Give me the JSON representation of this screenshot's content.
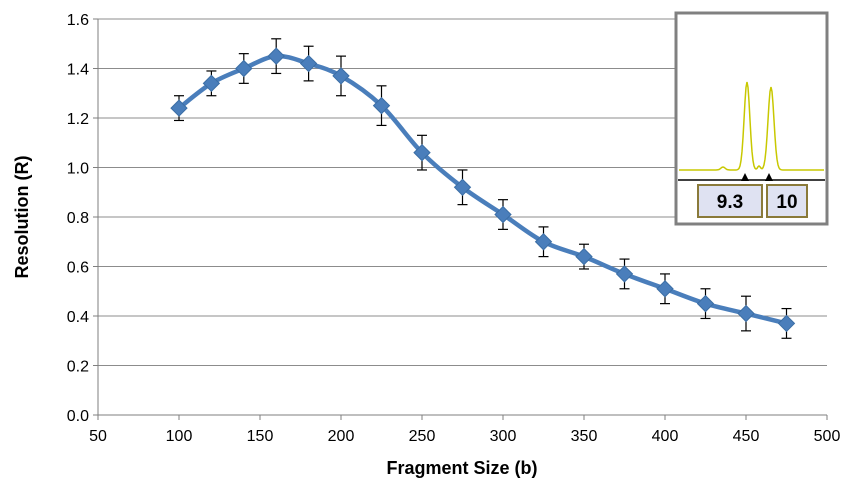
{
  "chart_data": {
    "type": "line",
    "title": "",
    "xlabel": "Fragment Size (b)",
    "ylabel": "Resolution  (R)",
    "xlim": [
      50,
      500
    ],
    "ylim": [
      0.0,
      1.6
    ],
    "x_ticks": [
      50,
      100,
      150,
      200,
      250,
      300,
      350,
      400,
      450,
      500
    ],
    "y_ticks": [
      "0.0",
      "0.2",
      "0.4",
      "0.6",
      "0.8",
      "1.0",
      "1.2",
      "1.4",
      "1.6"
    ],
    "grid": "horizontal",
    "series": [
      {
        "color": "#4a7ebb",
        "marker": "diamond",
        "smooth": true,
        "x": [
          100,
          120,
          140,
          160,
          180,
          200,
          225,
          250,
          275,
          300,
          325,
          350,
          375,
          400,
          425,
          450,
          475
        ],
        "y": [
          1.24,
          1.34,
          1.4,
          1.45,
          1.42,
          1.37,
          1.25,
          1.06,
          0.92,
          0.81,
          0.7,
          0.64,
          0.57,
          0.51,
          0.45,
          0.41,
          0.37
        ],
        "error": [
          0.05,
          0.05,
          0.06,
          0.07,
          0.07,
          0.08,
          0.08,
          0.07,
          0.07,
          0.06,
          0.06,
          0.05,
          0.06,
          0.06,
          0.06,
          0.07,
          0.06
        ]
      }
    ]
  },
  "inset": {
    "labels": [
      "9.3",
      "10"
    ],
    "trace_color": "#c8c800",
    "border_color": "#808080"
  }
}
